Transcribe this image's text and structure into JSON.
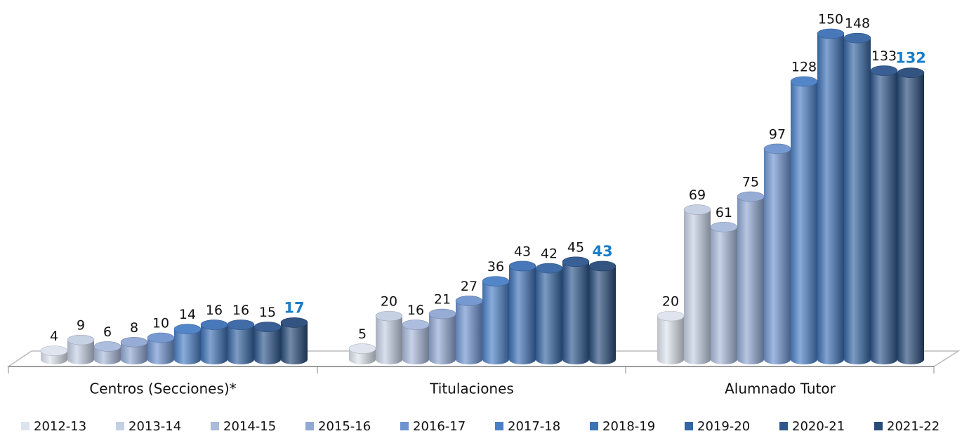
{
  "chart_data": {
    "type": "bar",
    "categories": [
      "Centros (Secciones)*",
      "Titulaciones",
      "Alumnado Tutor"
    ],
    "series": [
      {
        "name": "2012-13",
        "color": "#dde3ee",
        "values": [
          4,
          5,
          20
        ]
      },
      {
        "name": "2013-14",
        "color": "#c4cfe3",
        "values": [
          9,
          20,
          69
        ]
      },
      {
        "name": "2014-15",
        "color": "#a9badb",
        "values": [
          6,
          16,
          61
        ]
      },
      {
        "name": "2015-16",
        "color": "#90a8d3",
        "values": [
          8,
          21,
          75
        ]
      },
      {
        "name": "2016-17",
        "color": "#6f94cf",
        "values": [
          10,
          27,
          97
        ]
      },
      {
        "name": "2017-18",
        "color": "#4a7fc6",
        "values": [
          14,
          36,
          128
        ]
      },
      {
        "name": "2018-19",
        "color": "#3e71b6",
        "values": [
          16,
          43,
          150
        ]
      },
      {
        "name": "2019-20",
        "color": "#3665a3",
        "values": [
          16,
          42,
          148
        ]
      },
      {
        "name": "2020-21",
        "color": "#2f578e",
        "values": [
          15,
          45,
          133
        ]
      },
      {
        "name": "2021-22",
        "color": "#284b7a",
        "values": [
          17,
          43,
          132
        ],
        "label_color": "#1a7dc8"
      }
    ]
  }
}
